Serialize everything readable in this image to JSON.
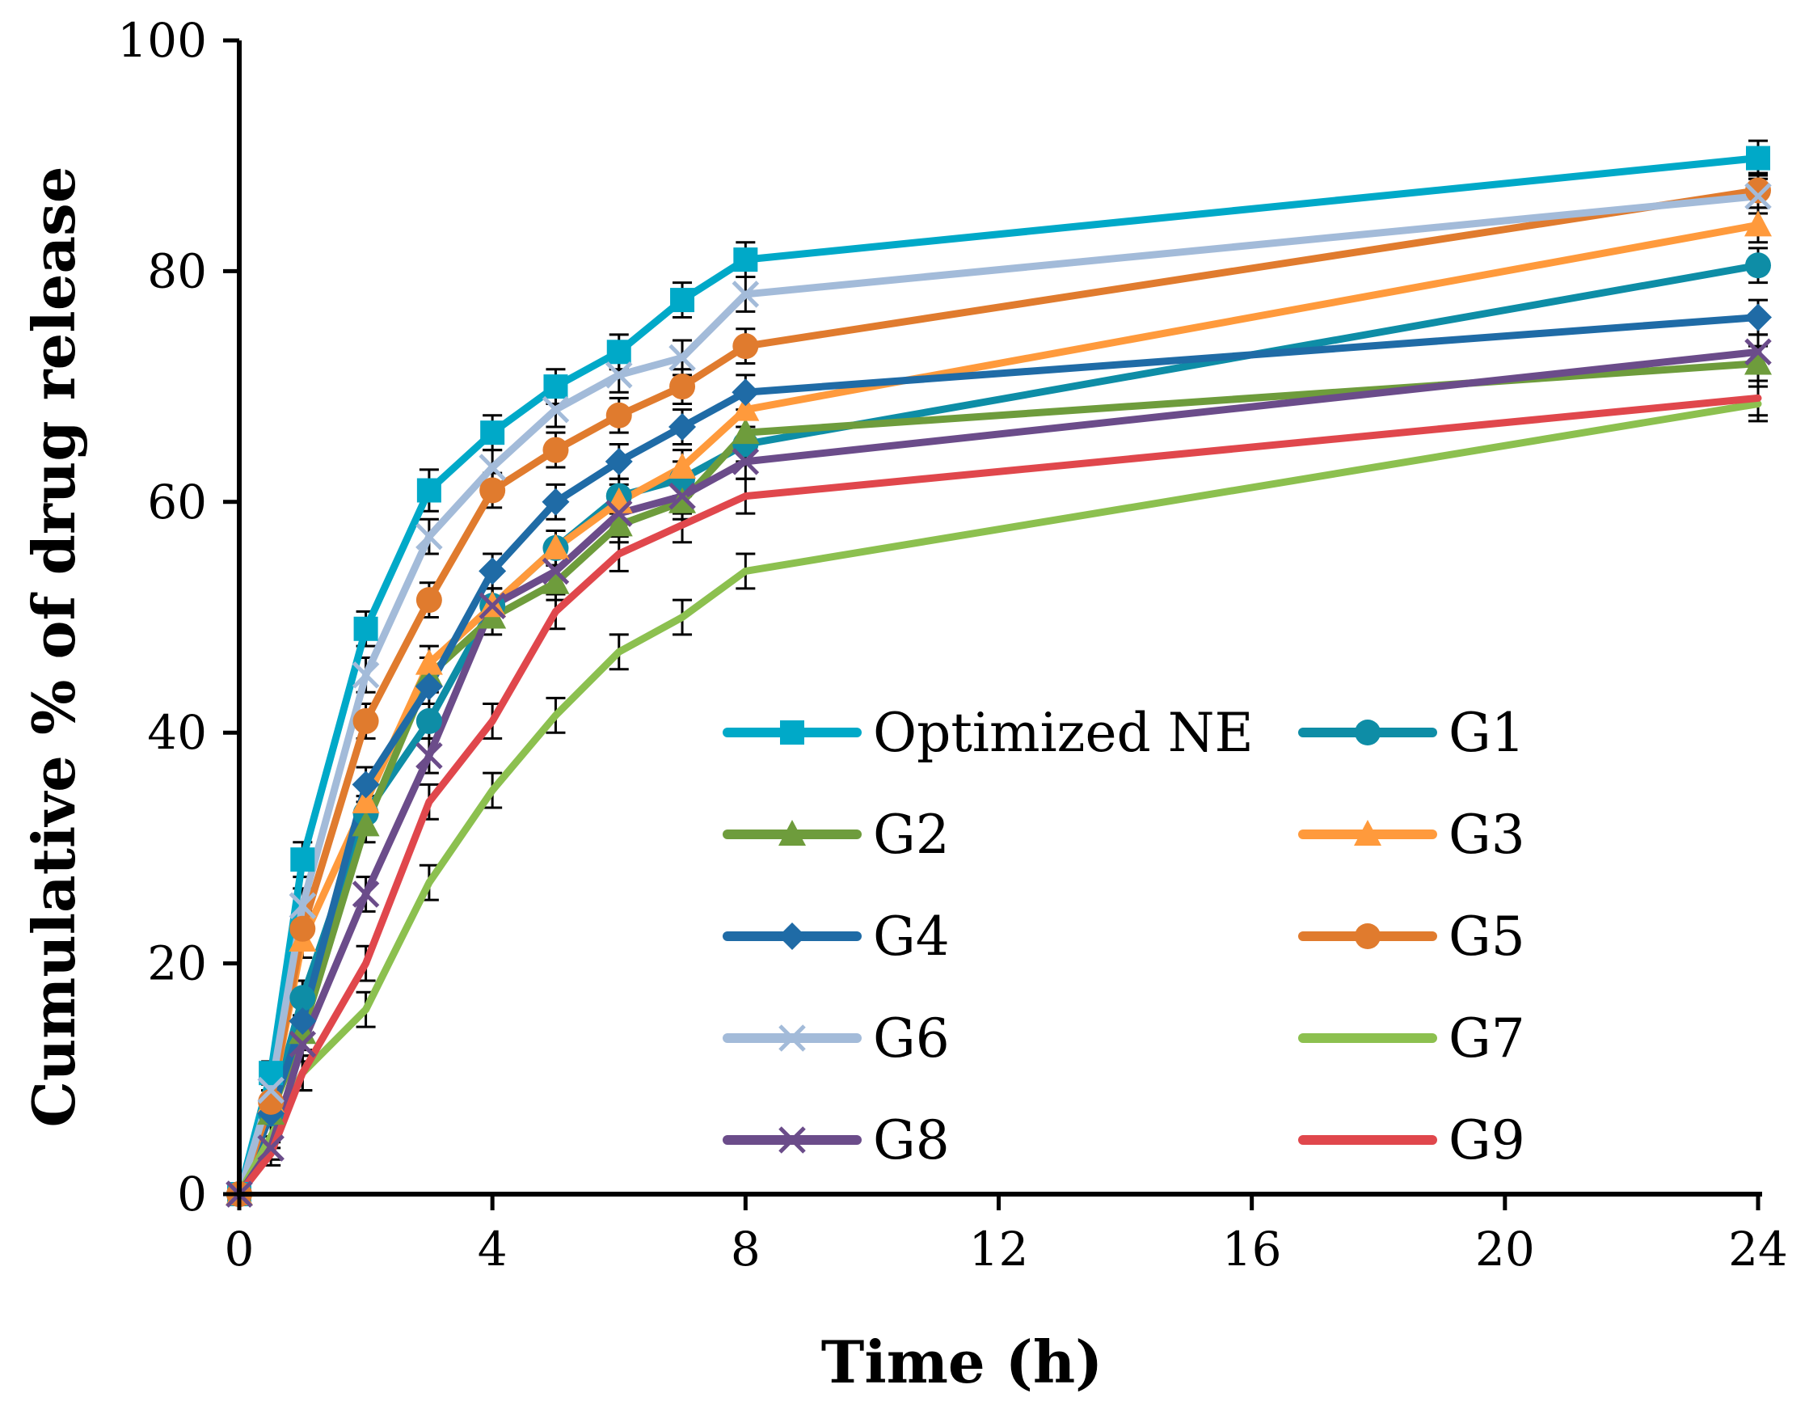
{
  "chart_data": {
    "type": "line",
    "title": "",
    "xlabel": "Time (h)",
    "ylabel": "Cumulative % of drug release",
    "xlim": [
      0,
      24
    ],
    "ylim": [
      0,
      100
    ],
    "xticks": [
      "0",
      "4",
      "8",
      "12",
      "16",
      "20",
      "24"
    ],
    "yticks": [
      "0",
      "20",
      "40",
      "60",
      "80",
      "100"
    ],
    "grid": false,
    "legend_position": "center-right, two columns",
    "x": [
      0,
      0.5,
      1,
      2,
      3,
      4,
      5,
      6,
      7,
      8,
      24
    ],
    "series": [
      {
        "name": "Optimized NE",
        "color": "#00A9C8",
        "marker": "square",
        "values": [
          0,
          10.5,
          29,
          49,
          61,
          66,
          70,
          73,
          77.5,
          81,
          89.8
        ],
        "errors": [
          0,
          1,
          1.5,
          1.5,
          1.8,
          1.5,
          1.5,
          1.5,
          1.5,
          1.5,
          1.5
        ]
      },
      {
        "name": "G1",
        "color": "#0E8DA6",
        "marker": "circle",
        "values": [
          0,
          7,
          17,
          33,
          41,
          51,
          56,
          60.5,
          62,
          65,
          80.5
        ],
        "errors": [
          0,
          1,
          1.5,
          1.5,
          1.5,
          1.5,
          1.5,
          1.5,
          1.5,
          1.5,
          1.5
        ]
      },
      {
        "name": "G2",
        "color": "#6E9C3C",
        "marker": "triangle",
        "values": [
          0,
          7,
          14,
          32,
          45,
          50,
          53,
          58,
          60,
          66,
          72
        ],
        "errors": [
          0,
          1,
          1.5,
          1.5,
          1.5,
          1.5,
          1.5,
          1.5,
          1.5,
          1.5,
          1.5
        ]
      },
      {
        "name": "G3",
        "color": "#FF9A3C",
        "marker": "triangle",
        "values": [
          0,
          8,
          22,
          34,
          46,
          51,
          56,
          60,
          63,
          68,
          84
        ],
        "errors": [
          0,
          1,
          1.5,
          1.5,
          1.5,
          1.5,
          1.5,
          1.5,
          1.5,
          1.5,
          1.5
        ]
      },
      {
        "name": "G4",
        "color": "#1F6BA6",
        "marker": "diamond",
        "values": [
          0,
          7,
          15,
          35.5,
          44,
          54,
          60,
          63.5,
          66.5,
          69.5,
          76
        ],
        "errors": [
          0,
          1,
          1.5,
          1.5,
          1.5,
          1.5,
          1.5,
          1.5,
          1.5,
          1.5,
          1.5
        ]
      },
      {
        "name": "G5",
        "color": "#E07B2E",
        "marker": "circle",
        "values": [
          0,
          8,
          23,
          41,
          51.5,
          61,
          64.5,
          67.5,
          70,
          73.5,
          87
        ],
        "errors": [
          0,
          1,
          1.5,
          1.5,
          1.5,
          1.5,
          1.5,
          1.5,
          1.5,
          1.5,
          1.5
        ]
      },
      {
        "name": "G6",
        "color": "#A3BBD9",
        "marker": "x",
        "values": [
          0,
          9,
          25,
          45,
          57,
          63,
          68,
          71,
          72.5,
          78,
          86.5
        ],
        "errors": [
          0,
          1,
          1.5,
          1.5,
          1.5,
          1.5,
          1.5,
          1.5,
          1.5,
          1.5,
          1.5
        ]
      },
      {
        "name": "G7",
        "color": "#8CC04F",
        "marker": "none",
        "values": [
          0,
          5,
          10.5,
          16,
          27,
          35,
          41.5,
          47,
          50,
          54,
          68.5
        ],
        "errors": [
          0,
          1,
          1.5,
          1.5,
          1.5,
          1.5,
          1.5,
          1.5,
          1.5,
          1.5,
          1.5
        ]
      },
      {
        "name": "G8",
        "color": "#6B4C8A",
        "marker": "x",
        "values": [
          0,
          4,
          13,
          26,
          38,
          51,
          54,
          59,
          60.5,
          63.5,
          73
        ],
        "errors": [
          0,
          1,
          1.5,
          1.5,
          1.5,
          1.5,
          1.5,
          1.5,
          1.5,
          1.5,
          1.5
        ]
      },
      {
        "name": "G9",
        "color": "#E0474C",
        "marker": "none",
        "values": [
          0,
          3.5,
          10.5,
          20,
          34,
          41,
          50.5,
          55.5,
          58,
          60.5,
          69
        ],
        "errors": [
          0,
          1,
          1.5,
          1.5,
          1.5,
          1.5,
          1.5,
          1.5,
          1.5,
          1.5,
          1.5
        ]
      }
    ]
  }
}
